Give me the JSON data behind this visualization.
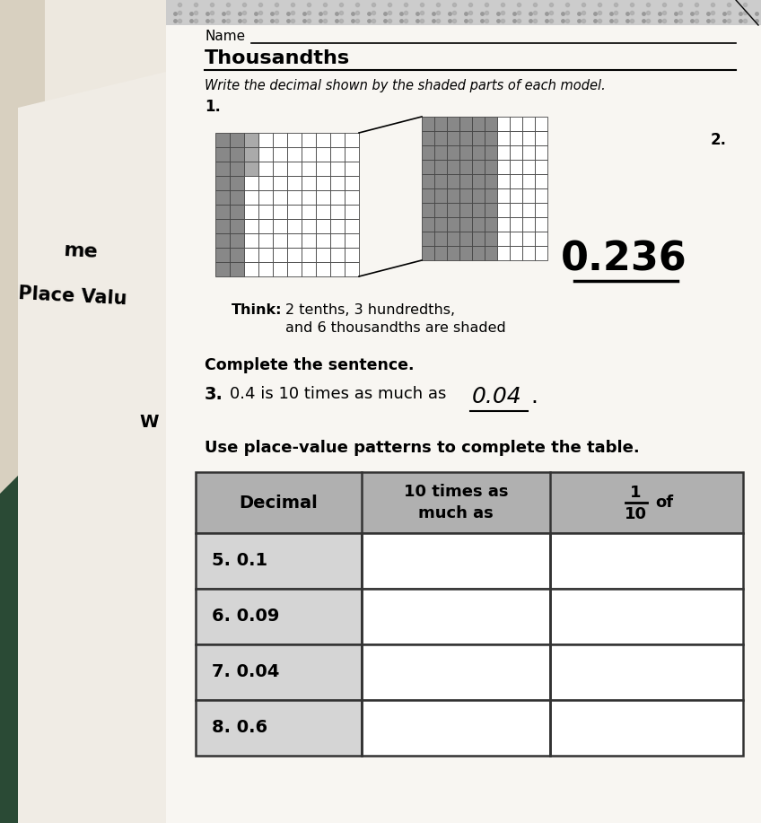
{
  "bg_color": "#d8d0c0",
  "paper_color": "#f5f2ee",
  "title": "Thousandths",
  "name_label": "Name",
  "instruction1": "Write the decimal shown by the shaded parts of each model.",
  "num1": "1.",
  "num2": "2.",
  "think_bold": "Think:",
  "think_rest": " 2 tenths, 3 hundredths,\n        and 6 thousandths are shaded",
  "decimal_answer": "0.236",
  "complete_sentence": "Complete the sentence.",
  "sentence3_prefix": "3.  0.4 is 10 times as much as",
  "answer3_handwritten": "0.04",
  "table_instruction": "Use place-value patterns to complete the table.",
  "col1_header": "Decimal",
  "col2_header": "10 times as\nmuch as",
  "col3_frac_num": "1",
  "col3_frac_den": "10",
  "col3_suffix": "of",
  "rows": [
    {
      "num": "5.",
      "val": "0.1"
    },
    {
      "num": "6.",
      "val": "0.09"
    },
    {
      "num": "7.",
      "val": "0.04"
    },
    {
      "num": "8.",
      "val": "0.6"
    }
  ],
  "left_text_me": "me",
  "left_text_place": "Place Valu",
  "left_text_w": "W",
  "gray_dot_color": "#999999",
  "grid_shade_color": "#888888",
  "grid_line_color": "#444444",
  "table_header_gray": "#b0b0b0",
  "table_border_color": "#333333"
}
